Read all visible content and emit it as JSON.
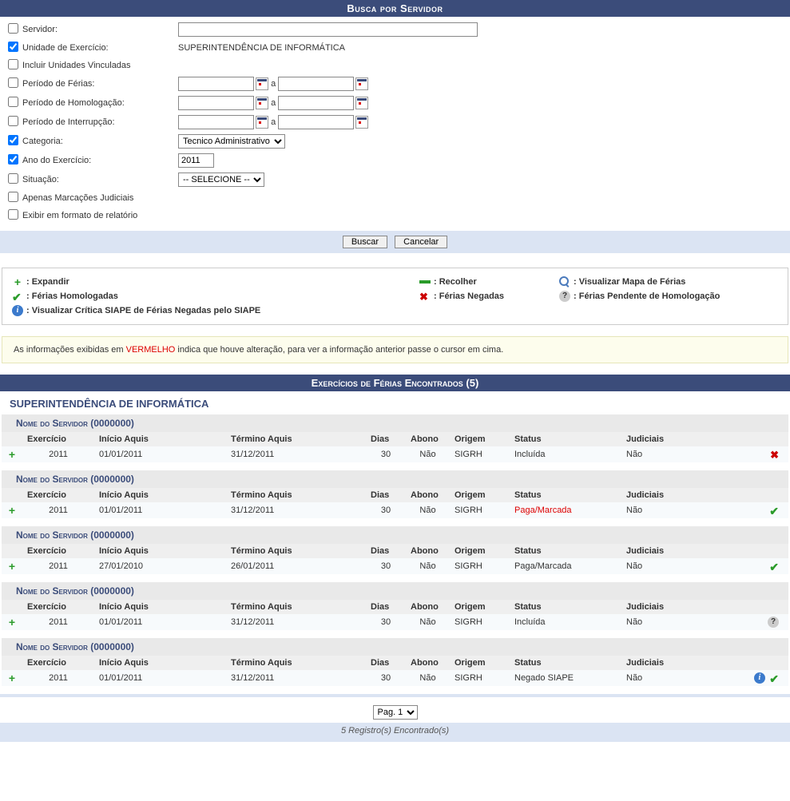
{
  "search": {
    "title": "Busca por Servidor",
    "fields": {
      "servidor": {
        "label": "Servidor:",
        "checked": false,
        "value": ""
      },
      "unidade": {
        "label": "Unidade de Exercício:",
        "checked": true,
        "value": "SUPERINTENDÊNCIA DE INFORMÁTICA"
      },
      "incluir_vinculadas": {
        "label": "Incluir Unidades Vinculadas",
        "checked": false
      },
      "periodo_ferias": {
        "label": "Período de Férias:",
        "checked": false,
        "sep": "a"
      },
      "periodo_homolog": {
        "label": "Período de Homologação:",
        "checked": false,
        "sep": "a"
      },
      "periodo_interrup": {
        "label": "Período de Interrupção:",
        "checked": false,
        "sep": "a"
      },
      "categoria": {
        "label": "Categoria:",
        "checked": true,
        "selected": "Tecnico Administrativo"
      },
      "ano": {
        "label": "Ano do Exercício:",
        "checked": true,
        "value": "2011"
      },
      "situacao": {
        "label": "Situação:",
        "checked": false,
        "selected": "-- SELECIONE --"
      },
      "marcacoes_jud": {
        "label": "Apenas Marcações Judiciais",
        "checked": false
      },
      "relatorio": {
        "label": "Exibir em formato de relatório",
        "checked": false
      }
    },
    "buttons": {
      "buscar": "Buscar",
      "cancelar": "Cancelar"
    }
  },
  "legend": {
    "expandir": ": Expandir",
    "recolher": ": Recolher",
    "visualizar_mapa": ": Visualizar Mapa de Férias",
    "homologadas": ": Férias Homologadas",
    "negadas": ": Férias Negadas",
    "pendente": ": Férias Pendente de Homologação",
    "critica": ": Visualizar Crítica SIAPE de Férias Negadas pelo SIAPE"
  },
  "info_note": {
    "pre": "As informações exibidas em ",
    "red": "VERMELHO",
    "post": " indica que houve alteração, para ver a informação anterior passe o cursor em cima."
  },
  "results": {
    "title": "Exercícios de Férias Encontrados (5)",
    "unit": "SUPERINTENDÊNCIA DE INFORMÁTICA",
    "headers": {
      "exercicio": "Exercício",
      "inicio": "Início Aquis",
      "termino": "Término Aquis",
      "dias": "Dias",
      "abono": "Abono",
      "origem": "Origem",
      "status": "Status",
      "judiciais": "Judiciais"
    },
    "servers": [
      {
        "name": "Nome do Servidor (0000000)",
        "row": {
          "exercicio": "2011",
          "inicio": "01/01/2011",
          "termino": "31/12/2011",
          "dias": "30",
          "abono": "Não",
          "origem": "SIGRH",
          "status": "Incluída",
          "status_red": false,
          "judiciais": "Não",
          "actions": [
            "x"
          ]
        }
      },
      {
        "name": "Nome do Servidor (0000000)",
        "row": {
          "exercicio": "2011",
          "inicio": "01/01/2011",
          "termino": "31/12/2011",
          "dias": "30",
          "abono": "Não",
          "origem": "SIGRH",
          "status": "Paga/Marcada",
          "status_red": true,
          "judiciais": "Não",
          "actions": [
            "check"
          ]
        }
      },
      {
        "name": "Nome do Servidor (0000000)",
        "row": {
          "exercicio": "2011",
          "inicio": "27/01/2010",
          "termino": "26/01/2011",
          "dias": "30",
          "abono": "Não",
          "origem": "SIGRH",
          "status": "Paga/Marcada",
          "status_red": false,
          "judiciais": "Não",
          "actions": [
            "check"
          ]
        }
      },
      {
        "name": "Nome do Servidor (0000000)",
        "row": {
          "exercicio": "2011",
          "inicio": "01/01/2011",
          "termino": "31/12/2011",
          "dias": "30",
          "abono": "Não",
          "origem": "SIGRH",
          "status": "Incluída",
          "status_red": false,
          "judiciais": "Não",
          "actions": [
            "question"
          ]
        }
      },
      {
        "name": "Nome do Servidor (0000000)",
        "row": {
          "exercicio": "2011",
          "inicio": "01/01/2011",
          "termino": "31/12/2011",
          "dias": "30",
          "abono": "Não",
          "origem": "SIGRH",
          "status": "Negado SIAPE",
          "status_red": false,
          "judiciais": "Não",
          "actions": [
            "info",
            "check"
          ]
        }
      }
    ]
  },
  "pagination": {
    "label": "Pag. 1",
    "count": "5 Registro(s) Encontrado(s)"
  }
}
